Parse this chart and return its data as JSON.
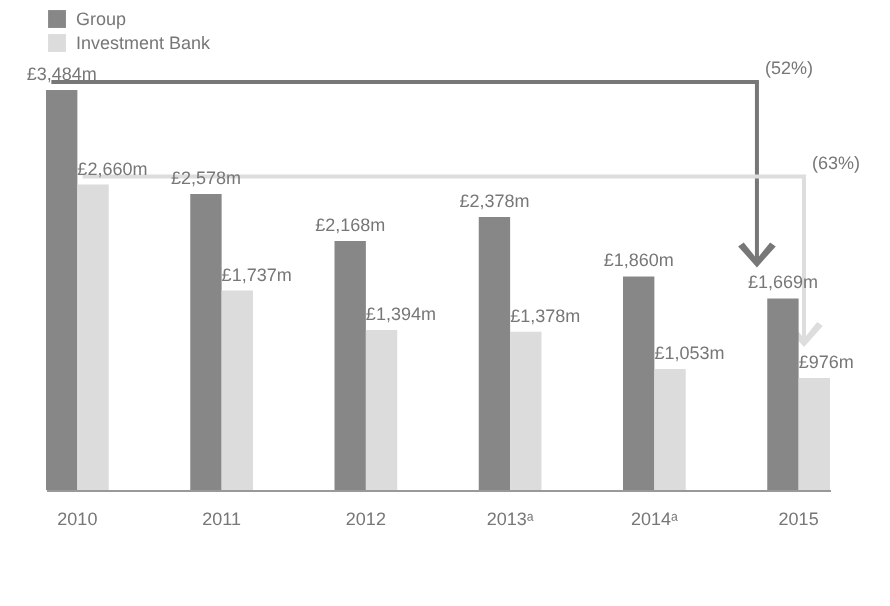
{
  "chart_data": {
    "type": "bar",
    "categories": [
      "2010",
      "2011",
      "2012",
      "2013ᵃ",
      "2014ᵃ",
      "2015"
    ],
    "series": [
      {
        "name": "Group",
        "color": "#878787",
        "values": [
          3484,
          2578,
          2168,
          2378,
          1860,
          1669
        ],
        "value_labels": [
          "£3,484m",
          "£2,578m",
          "£2,168m",
          "£2,378m",
          "£1,860m",
          "£1,669m"
        ]
      },
      {
        "name": "Investment Bank",
        "color": "#dcdcdc",
        "values": [
          2660,
          1737,
          1394,
          1378,
          1053,
          976
        ],
        "value_labels": [
          "£2,660m",
          "£1,737m",
          "£1,394m",
          "£1,378m",
          "£1,053m",
          "£976m"
        ]
      }
    ],
    "annotations": [
      "(52%)",
      "(63%)"
    ],
    "legend": "top left"
  }
}
